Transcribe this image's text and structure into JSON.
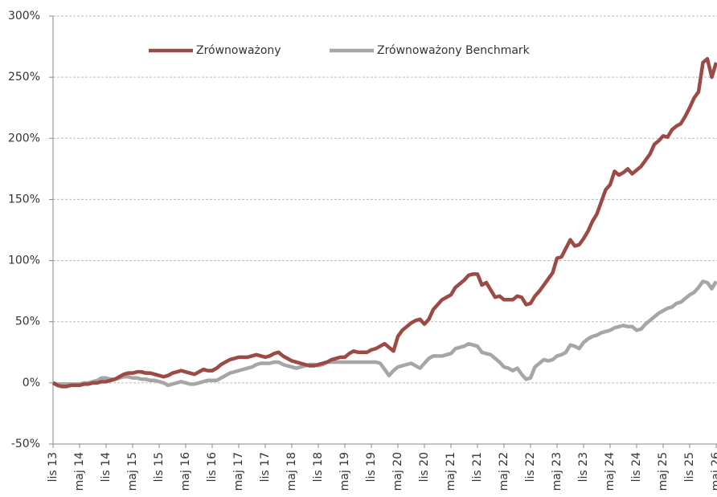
{
  "chart_data": {
    "type": "line",
    "categories": [
      "lis 13",
      null,
      null,
      null,
      null,
      null,
      "maj 14",
      null,
      null,
      null,
      null,
      null,
      "lis 14",
      null,
      null,
      null,
      null,
      null,
      "maj 15",
      null,
      null,
      null,
      null,
      null,
      "lis 15",
      null,
      null,
      null,
      null,
      null,
      "maj 16",
      null,
      null,
      null,
      null,
      null,
      "lis 16",
      null,
      null,
      null,
      null,
      null,
      "maj 17",
      null,
      null,
      null,
      null,
      null,
      "lis 17",
      null,
      null,
      null,
      null,
      null,
      "maj 18",
      null,
      null,
      null,
      null,
      null,
      "lis 18",
      null,
      null,
      null,
      null,
      null,
      "maj 19",
      null,
      null,
      null,
      null,
      null,
      "lis 19",
      null,
      null,
      null,
      null,
      null,
      "maj 20",
      null,
      null,
      null,
      null,
      null,
      "lis 20",
      null,
      null,
      null,
      null,
      null,
      "maj 21",
      null,
      null,
      null,
      null,
      null,
      "lis 21",
      null,
      null,
      null,
      null,
      null,
      "maj 22",
      null,
      null,
      null,
      null,
      null,
      "lis 22",
      null,
      null,
      null,
      null,
      null,
      "maj 23",
      null,
      null,
      null,
      null,
      null,
      "lis 23",
      null,
      null,
      null,
      null,
      null,
      "maj 24",
      null,
      null,
      null,
      null,
      null,
      "lis 24",
      null,
      null,
      null,
      null,
      null,
      "maj 25",
      null,
      null,
      null,
      null,
      null,
      "lis 25",
      null,
      null,
      null,
      null,
      null,
      "maj 26"
    ],
    "series": [
      {
        "name": "Zrównoważony",
        "color": "#9b4a45",
        "values": [
          0,
          -2,
          -3,
          -3,
          -2,
          -2,
          -2,
          -1,
          -1,
          0,
          0,
          1,
          1,
          2,
          3,
          5,
          7,
          8,
          8,
          9,
          9,
          8,
          8,
          7,
          6,
          5,
          6,
          8,
          9,
          10,
          9,
          8,
          7,
          9,
          11,
          10,
          10,
          12,
          15,
          17,
          19,
          20,
          21,
          21,
          21,
          22,
          23,
          22,
          21,
          22,
          24,
          25,
          22,
          20,
          18,
          17,
          16,
          15,
          14,
          14,
          15,
          16,
          17,
          19,
          20,
          21,
          21,
          24,
          26,
          25,
          25,
          25,
          27,
          28,
          30,
          32,
          29,
          26,
          38,
          43,
          46,
          49,
          51,
          52,
          48,
          52,
          60,
          64,
          68,
          70,
          72,
          78,
          81,
          84,
          88,
          89,
          89,
          80,
          82,
          76,
          70,
          71,
          68,
          68,
          68,
          71,
          70,
          64,
          65,
          71,
          75,
          80,
          85,
          90,
          102,
          103,
          110,
          117,
          112,
          113,
          118,
          124,
          132,
          138,
          148,
          158,
          162,
          173,
          170,
          172,
          175,
          171,
          174,
          177,
          182,
          187,
          195,
          198,
          202,
          201,
          207,
          210,
          212,
          218,
          225,
          233,
          238,
          262,
          265,
          250,
          262
        ]
      },
      {
        "name": "Zrównoważony Benchmark",
        "color": "#a6a6a6",
        "values": [
          0,
          -1,
          -1,
          -1,
          -1,
          -1,
          -1,
          0,
          0,
          1,
          2,
          4,
          4,
          3,
          3,
          4,
          5,
          5,
          4,
          4,
          3,
          3,
          2,
          2,
          1,
          0,
          -2,
          -1,
          0,
          1,
          0,
          -1,
          -1,
          0,
          1,
          2,
          2,
          2,
          4,
          6,
          8,
          9,
          10,
          11,
          12,
          13,
          15,
          16,
          16,
          16,
          17,
          17,
          15,
          14,
          13,
          12,
          13,
          14,
          15,
          15,
          14,
          15,
          17,
          17,
          17,
          17,
          17,
          17,
          17,
          17,
          17,
          17,
          17,
          17,
          16,
          11,
          6,
          10,
          13,
          14,
          15,
          16,
          14,
          12,
          16,
          20,
          22,
          22,
          22,
          23,
          24,
          28,
          29,
          30,
          32,
          31,
          30,
          25,
          24,
          23,
          20,
          17,
          13,
          12,
          10,
          12,
          7,
          3,
          4,
          13,
          16,
          19,
          18,
          19,
          22,
          23,
          25,
          31,
          30,
          28,
          33,
          36,
          38,
          39,
          41,
          42,
          43,
          45,
          46,
          47,
          46,
          46,
          43,
          44,
          48,
          51,
          54,
          57,
          59,
          61,
          62,
          65,
          66,
          69,
          72,
          74,
          78,
          83,
          82,
          77,
          83
        ]
      }
    ],
    "ylim": [
      -50,
      300
    ],
    "yticks": [
      {
        "value": -50,
        "label": "-50%"
      },
      {
        "value": 0,
        "label": "0%"
      },
      {
        "value": 50,
        "label": "50%"
      },
      {
        "value": 100,
        "label": "100%"
      },
      {
        "value": 150,
        "label": "150%"
      },
      {
        "value": 200,
        "label": "200%"
      },
      {
        "value": 250,
        "label": "250%"
      },
      {
        "value": 300,
        "label": "300%"
      }
    ],
    "grid": true,
    "legend": "top"
  }
}
